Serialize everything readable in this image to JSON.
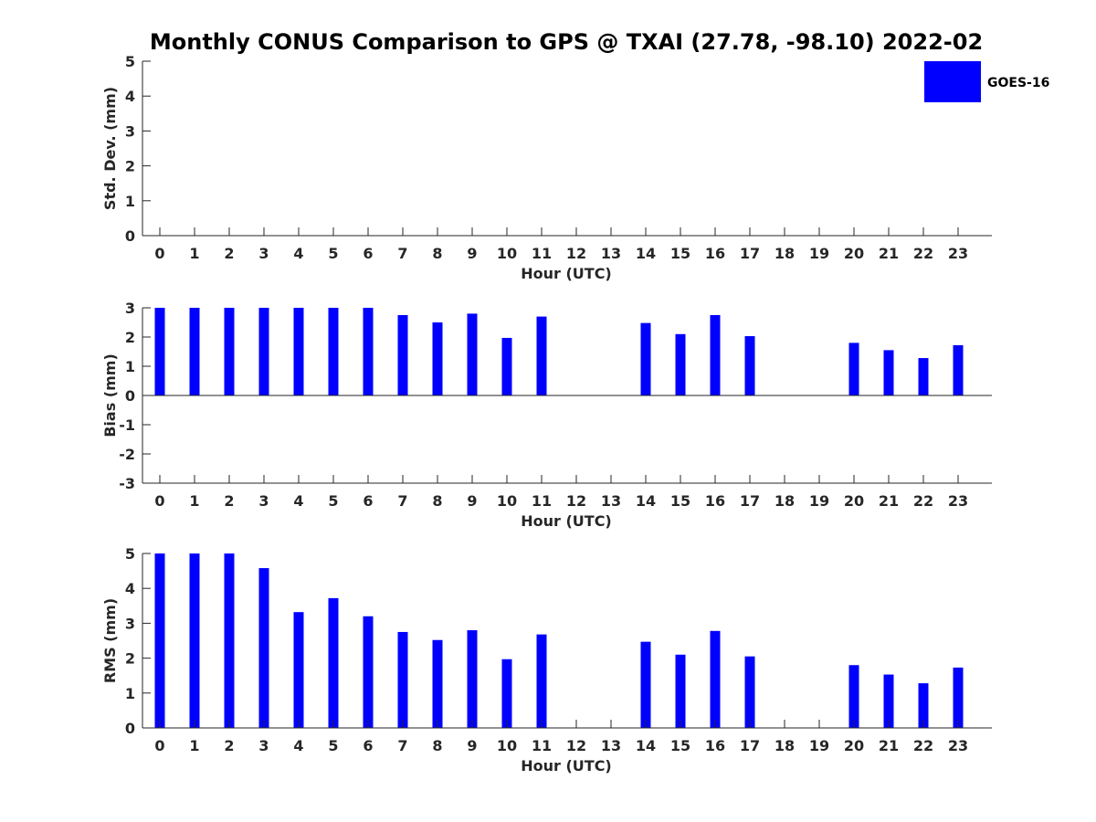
{
  "title": "Monthly CONUS Comparison to GPS @ TXAI (27.78, -98.10) 2022-02",
  "legend": {
    "label": "GOES-16",
    "color": "#0000ff",
    "placement": "top-right"
  },
  "chart_data": [
    {
      "type": "bar",
      "id": "stddev",
      "xlabel": "Hour (UTC)",
      "ylabel": "Std. Dev. (mm)",
      "ylim": [
        0,
        5
      ],
      "yticks": [
        0,
        1,
        2,
        3,
        4,
        5
      ],
      "categories": [
        "0",
        "1",
        "2",
        "3",
        "4",
        "5",
        "6",
        "7",
        "8",
        "9",
        "10",
        "11",
        "12",
        "13",
        "14",
        "15",
        "16",
        "17",
        "18",
        "19",
        "20",
        "21",
        "22",
        "23"
      ],
      "series": [
        {
          "name": "GOES-16",
          "values": [
            null,
            null,
            null,
            null,
            null,
            null,
            null,
            null,
            null,
            null,
            null,
            null,
            null,
            null,
            null,
            null,
            null,
            null,
            null,
            null,
            null,
            null,
            null,
            null
          ]
        }
      ]
    },
    {
      "type": "bar",
      "id": "bias",
      "xlabel": "Hour (UTC)",
      "ylabel": "Bias (mm)",
      "ylim": [
        -3,
        3
      ],
      "yticks": [
        -3,
        -2,
        -1,
        0,
        1,
        2,
        3
      ],
      "categories": [
        "0",
        "1",
        "2",
        "3",
        "4",
        "5",
        "6",
        "7",
        "8",
        "9",
        "10",
        "11",
        "12",
        "13",
        "14",
        "15",
        "16",
        "17",
        "18",
        "19",
        "20",
        "21",
        "22",
        "23"
      ],
      "series": [
        {
          "name": "GOES-16",
          "values": [
            3.0,
            3.0,
            3.0,
            3.0,
            3.0,
            3.0,
            3.0,
            2.75,
            2.5,
            2.8,
            1.97,
            2.7,
            null,
            null,
            2.48,
            2.1,
            2.75,
            2.03,
            null,
            null,
            1.8,
            1.55,
            1.28,
            1.72
          ]
        }
      ]
    },
    {
      "type": "bar",
      "id": "rms",
      "xlabel": "Hour (UTC)",
      "ylabel": "RMS (mm)",
      "ylim": [
        0,
        5
      ],
      "yticks": [
        0,
        1,
        2,
        3,
        4,
        5
      ],
      "categories": [
        "0",
        "1",
        "2",
        "3",
        "4",
        "5",
        "6",
        "7",
        "8",
        "9",
        "10",
        "11",
        "12",
        "13",
        "14",
        "15",
        "16",
        "17",
        "18",
        "19",
        "20",
        "21",
        "22",
        "23"
      ],
      "series": [
        {
          "name": "GOES-16",
          "values": [
            5.0,
            5.0,
            5.0,
            4.58,
            3.32,
            3.72,
            3.2,
            2.75,
            2.52,
            2.8,
            1.97,
            2.68,
            null,
            null,
            2.47,
            2.1,
            2.78,
            2.05,
            null,
            null,
            1.8,
            1.53,
            1.28,
            1.73
          ]
        }
      ]
    }
  ]
}
